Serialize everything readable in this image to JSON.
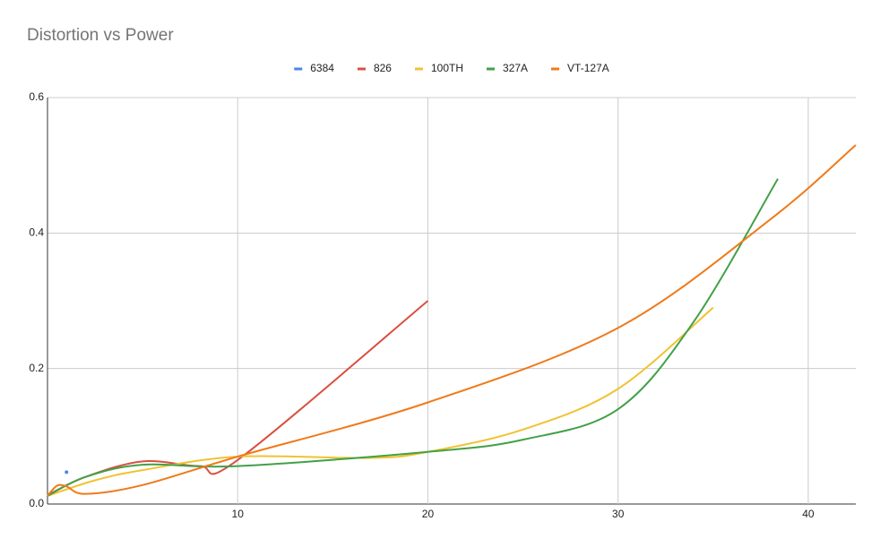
{
  "chart_data": {
    "type": "line",
    "title": "Distortion vs Power",
    "xlim": [
      0,
      42.5
    ],
    "ylim": [
      0,
      0.6
    ],
    "xticks": [
      10,
      20,
      30,
      40
    ],
    "yticks": [
      {
        "value": 0,
        "label": "0.0"
      },
      0.2,
      0.4,
      0.6
    ],
    "grid": true,
    "legend": "top",
    "series": [
      {
        "name": "6384",
        "color": "#4a86e8",
        "x": [
          1
        ],
        "values": [
          0.047
        ]
      },
      {
        "name": "826",
        "color": "#d9503f",
        "x": [
          0,
          2,
          5,
          8,
          10,
          20
        ],
        "values": [
          0.013,
          0.04,
          0.063,
          0.056,
          0.065,
          0.3
        ]
      },
      {
        "name": "100TH",
        "color": "#f1c232",
        "x": [
          0,
          2.5,
          5,
          10,
          17,
          20,
          25,
          30,
          35
        ],
        "values": [
          0.012,
          0.035,
          0.05,
          0.07,
          0.068,
          0.077,
          0.11,
          0.17,
          0.29
        ]
      },
      {
        "name": "327A",
        "color": "#43a047",
        "x": [
          0,
          2,
          5,
          10,
          20,
          25,
          30,
          34,
          38.4
        ],
        "values": [
          0.012,
          0.04,
          0.058,
          0.056,
          0.077,
          0.095,
          0.14,
          0.27,
          0.48
        ]
      },
      {
        "name": "VT-127A",
        "color": "#ef7a1a",
        "x": [
          0,
          0.5,
          1,
          2,
          5,
          10,
          20,
          30,
          38,
          42.5
        ],
        "values": [
          0.012,
          0.027,
          0.026,
          0.015,
          0.028,
          0.07,
          0.15,
          0.26,
          0.42,
          0.53
        ]
      }
    ]
  }
}
